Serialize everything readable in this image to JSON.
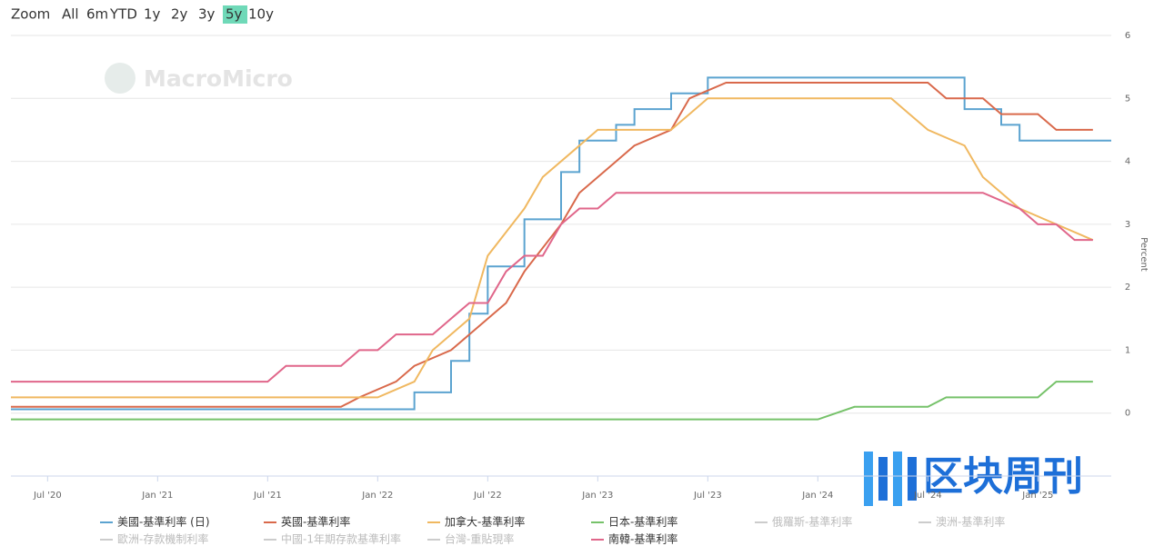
{
  "chart_data": {
    "type": "line",
    "range_selector": {
      "label": "Zoom",
      "buttons": [
        "All",
        "6m",
        "YTD",
        "1y",
        "2y",
        "3y",
        "5y",
        "10y"
      ],
      "selected": 6
    },
    "watermarks": [
      "MacroMicro",
      "区块周刊"
    ],
    "y_axis_label": "Percent",
    "xlim": [
      "2020-05",
      "2025-05"
    ],
    "xticks": [
      {
        "value": "2020-07",
        "label": "Jul '20"
      },
      {
        "value": "2021-01",
        "label": "Jan '21"
      },
      {
        "value": "2021-07",
        "label": "Jul '21"
      },
      {
        "value": "2022-01",
        "label": "Jan '22"
      },
      {
        "value": "2022-07",
        "label": "Jul '22"
      },
      {
        "value": "2023-01",
        "label": "Jan '23"
      },
      {
        "value": "2023-07",
        "label": "Jul '23"
      },
      {
        "value": "2024-01",
        "label": "Jan '24"
      },
      {
        "value": "2024-07",
        "label": "Jul '24"
      },
      {
        "value": "2025-01",
        "label": "Jan '25"
      }
    ],
    "ylim": [
      -1,
      6
    ],
    "yticks": [
      0,
      1,
      2,
      3,
      4,
      5,
      6
    ],
    "grid": true,
    "series": [
      {
        "name": "美國-基準利率 (日)",
        "color": "#5ba3d0",
        "visible": true,
        "step": true,
        "x": [
          "2020-05",
          "2022-03",
          "2022-05",
          "2022-06",
          "2022-07",
          "2022-09",
          "2022-11",
          "2022-12",
          "2023-02",
          "2023-03",
          "2023-05",
          "2023-07",
          "2024-09",
          "2024-11",
          "2024-12",
          "2025-05"
        ],
        "values": [
          0.06,
          0.33,
          0.83,
          1.58,
          2.33,
          3.08,
          3.83,
          4.33,
          4.58,
          4.83,
          5.08,
          5.33,
          4.83,
          4.58,
          4.33,
          4.33
        ]
      },
      {
        "name": "英國-基準利率",
        "color": "#d9694b",
        "visible": true,
        "x": [
          "2020-05",
          "2021-11",
          "2021-12",
          "2022-02",
          "2022-03",
          "2022-05",
          "2022-06",
          "2022-08",
          "2022-09",
          "2022-11",
          "2022-12",
          "2023-02",
          "2023-03",
          "2023-05",
          "2023-06",
          "2023-08",
          "2024-07",
          "2024-08",
          "2024-10",
          "2024-11",
          "2025-01",
          "2025-02",
          "2025-04"
        ],
        "values": [
          0.1,
          0.1,
          0.25,
          0.5,
          0.75,
          1.0,
          1.25,
          1.75,
          2.25,
          3.0,
          3.5,
          4.0,
          4.25,
          4.5,
          5.0,
          5.25,
          5.25,
          5.0,
          5.0,
          4.75,
          4.75,
          4.5,
          4.5
        ]
      },
      {
        "name": "加拿大-基準利率",
        "color": "#f0b860",
        "visible": true,
        "x": [
          "2020-05",
          "2022-01",
          "2022-03",
          "2022-04",
          "2022-06",
          "2022-07",
          "2022-09",
          "2022-10",
          "2022-12",
          "2023-01",
          "2023-05",
          "2023-06",
          "2023-07",
          "2024-05",
          "2024-06",
          "2024-07",
          "2024-09",
          "2024-10",
          "2024-12",
          "2025-04"
        ],
        "values": [
          0.25,
          0.25,
          0.5,
          1.0,
          1.5,
          2.5,
          3.25,
          3.75,
          4.25,
          4.5,
          4.5,
          4.75,
          5.0,
          5.0,
          4.75,
          4.5,
          4.25,
          3.75,
          3.25,
          2.75
        ]
      },
      {
        "name": "日本-基準利率",
        "color": "#76c26a",
        "visible": true,
        "x": [
          "2020-05",
          "2024-01",
          "2024-03",
          "2024-07",
          "2024-08",
          "2025-01",
          "2025-02",
          "2025-04"
        ],
        "values": [
          -0.1,
          -0.1,
          0.1,
          0.1,
          0.25,
          0.25,
          0.5,
          0.5
        ]
      },
      {
        "name": "俄羅斯-基準利率",
        "color": "#cccccc",
        "visible": false
      },
      {
        "name": "澳洲-基準利率",
        "color": "#cccccc",
        "visible": false
      },
      {
        "name": "歐洲-存款機制利率",
        "color": "#cccccc",
        "visible": false
      },
      {
        "name": "中國-1年期存款基準利率",
        "color": "#cccccc",
        "visible": false
      },
      {
        "name": "台灣-重貼現率",
        "color": "#cccccc",
        "visible": false
      },
      {
        "name": "南韓-基準利率",
        "color": "#e0668a",
        "visible": true,
        "x": [
          "2020-05",
          "2021-07",
          "2021-08",
          "2021-11",
          "2021-12",
          "2022-01",
          "2022-02",
          "2022-04",
          "2022-05",
          "2022-06",
          "2022-07",
          "2022-08",
          "2022-09",
          "2022-10",
          "2022-11",
          "2022-12",
          "2023-01",
          "2023-02",
          "2024-10",
          "2024-12",
          "2025-01",
          "2025-02",
          "2025-03",
          "2025-04"
        ],
        "values": [
          0.5,
          0.5,
          0.75,
          0.75,
          1.0,
          1.0,
          1.25,
          1.25,
          1.5,
          1.75,
          1.75,
          2.25,
          2.5,
          2.5,
          3.0,
          3.25,
          3.25,
          3.5,
          3.5,
          3.25,
          3.0,
          3.0,
          2.75,
          2.75
        ]
      }
    ]
  }
}
